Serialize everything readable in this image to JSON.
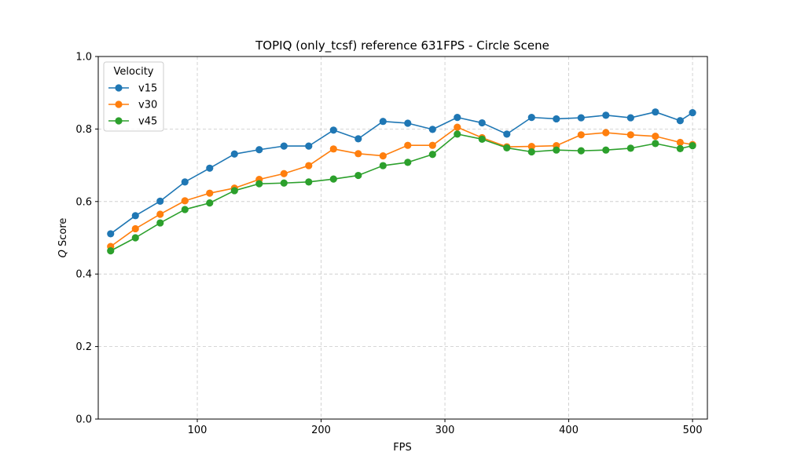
{
  "chart_data": {
    "type": "line",
    "title": "TOPIQ (only_tcsf) reference 631FPS - Circle Scene",
    "xlabel": "FPS",
    "ylabel_var": "Q",
    "ylabel_rest": " Score",
    "xlim": [
      20,
      512
    ],
    "ylim": [
      0.0,
      1.0
    ],
    "xticks": [
      100,
      200,
      300,
      400,
      500
    ],
    "xtick_labels": [
      "100",
      "200",
      "300",
      "400",
      "500"
    ],
    "yticks": [
      0.0,
      0.2,
      0.4,
      0.6,
      0.8,
      1.0
    ],
    "ytick_labels": [
      "0.0",
      "0.2",
      "0.4",
      "0.6",
      "0.8",
      "1.0"
    ],
    "grid": true,
    "legend": {
      "title": "Velocity",
      "location": "upper-left"
    },
    "x": [
      30,
      50,
      70,
      90,
      110,
      130,
      150,
      170,
      190,
      210,
      230,
      250,
      270,
      290,
      310,
      330,
      350,
      370,
      390,
      410,
      430,
      450,
      470,
      490,
      500
    ],
    "series": [
      {
        "name": "v15",
        "color": "#1f77b4",
        "values": [
          0.511,
          0.561,
          0.601,
          0.654,
          0.692,
          0.731,
          0.743,
          0.753,
          0.753,
          0.797,
          0.773,
          0.821,
          0.816,
          0.799,
          0.832,
          0.817,
          0.786,
          0.832,
          0.828,
          0.831,
          0.838,
          0.831,
          0.847,
          0.823,
          0.845
        ]
      },
      {
        "name": "v30",
        "color": "#ff7f0e",
        "values": [
          0.476,
          0.525,
          0.565,
          0.602,
          0.623,
          0.637,
          0.661,
          0.677,
          0.699,
          0.745,
          0.732,
          0.726,
          0.755,
          0.755,
          0.805,
          0.776,
          0.751,
          0.752,
          0.754,
          0.784,
          0.79,
          0.784,
          0.78,
          0.763,
          0.757
        ]
      },
      {
        "name": "v45",
        "color": "#2ca02c",
        "values": [
          0.464,
          0.5,
          0.541,
          0.578,
          0.596,
          0.63,
          0.649,
          0.651,
          0.654,
          0.662,
          0.672,
          0.699,
          0.708,
          0.73,
          0.786,
          0.772,
          0.748,
          0.737,
          0.742,
          0.74,
          0.742,
          0.747,
          0.76,
          0.746,
          0.754
        ]
      }
    ]
  }
}
